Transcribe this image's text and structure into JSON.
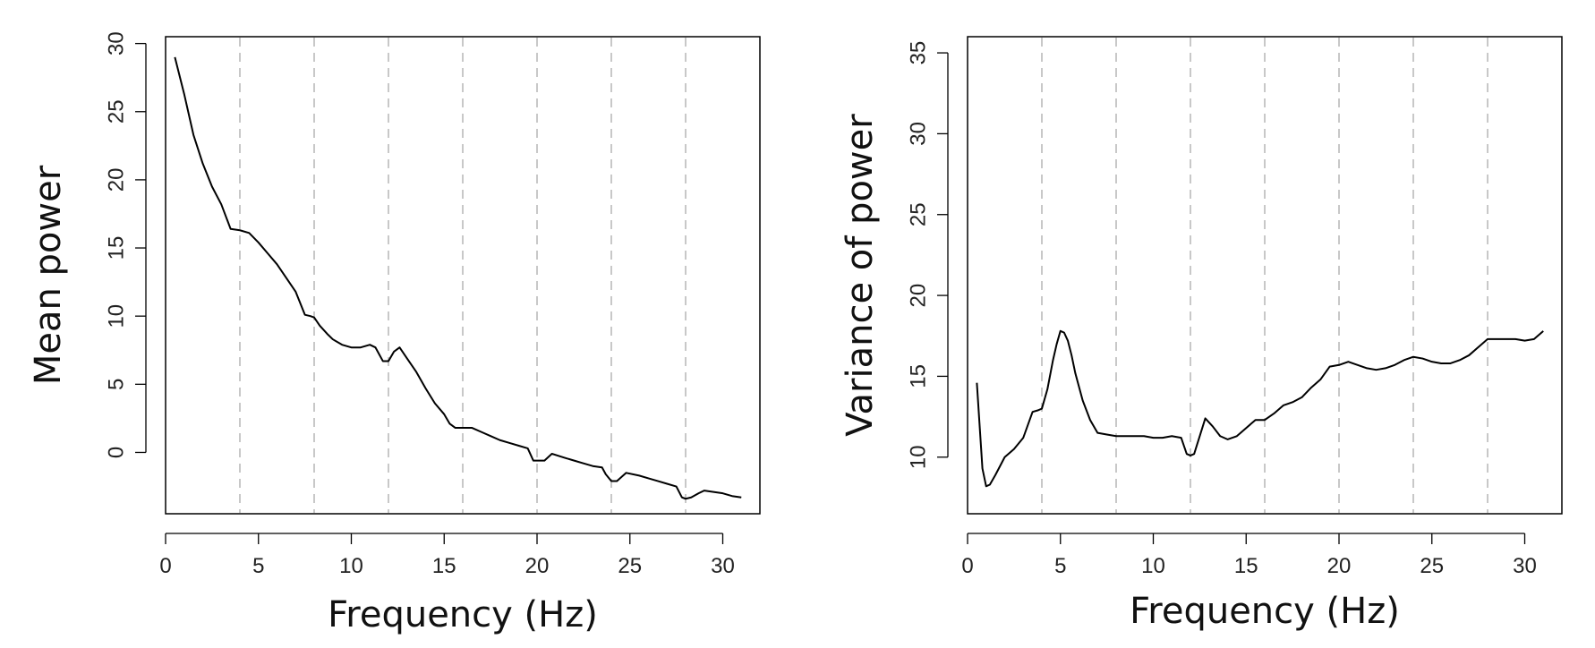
{
  "chart_data": [
    {
      "type": "line",
      "xlabel": "Frequency (Hz)",
      "ylabel": "Mean power",
      "xlim": [
        0,
        32
      ],
      "ylim": [
        -4.5,
        30.5
      ],
      "x_ticks": [
        0,
        5,
        10,
        15,
        20,
        25,
        30
      ],
      "y_ticks": [
        0,
        5,
        10,
        15,
        20,
        25,
        30
      ],
      "vlines": [
        4,
        8,
        12,
        16,
        20,
        24,
        28
      ],
      "grid": false,
      "series": [
        {
          "x": [
            0.5,
            1.0,
            1.5,
            2.0,
            2.5,
            3.0,
            3.5,
            4.0,
            4.5,
            5.0,
            5.5,
            6.0,
            6.5,
            7.0,
            7.5,
            7.8,
            8.0,
            8.3,
            8.7,
            9.0,
            9.5,
            10.0,
            10.5,
            11.0,
            11.3,
            11.7,
            12.0,
            12.3,
            12.6,
            13.0,
            13.5,
            14.0,
            14.5,
            15.0,
            15.3,
            15.6,
            16.0,
            16.5,
            17.0,
            17.5,
            18.0,
            18.5,
            19.0,
            19.5,
            19.8,
            20.0,
            20.4,
            20.8,
            21.5,
            22.0,
            22.5,
            23.0,
            23.5,
            23.7,
            24.0,
            24.3,
            24.8,
            25.5,
            26.0,
            26.5,
            27.0,
            27.5,
            27.8,
            28.0,
            28.3,
            28.7,
            29.0,
            29.5,
            30.0,
            30.5,
            31.0
          ],
          "values": [
            29.0,
            26.3,
            23.3,
            21.2,
            19.5,
            18.2,
            16.4,
            16.3,
            16.1,
            15.4,
            14.6,
            13.8,
            12.8,
            11.8,
            10.1,
            10.0,
            9.9,
            9.3,
            8.7,
            8.3,
            7.9,
            7.7,
            7.7,
            7.9,
            7.7,
            6.7,
            6.7,
            7.4,
            7.7,
            6.9,
            5.9,
            4.7,
            3.6,
            2.8,
            2.1,
            1.8,
            1.8,
            1.8,
            1.5,
            1.2,
            0.9,
            0.7,
            0.5,
            0.3,
            -0.6,
            -0.6,
            -0.6,
            -0.1,
            -0.4,
            -0.6,
            -0.8,
            -1.0,
            -1.1,
            -1.6,
            -2.1,
            -2.1,
            -1.5,
            -1.7,
            -1.9,
            -2.1,
            -2.3,
            -2.5,
            -3.3,
            -3.4,
            -3.3,
            -3.0,
            -2.8,
            -2.9,
            -3.0,
            -3.2,
            -3.3
          ]
        }
      ]
    },
    {
      "type": "line",
      "xlabel": "Frequency (Hz)",
      "ylabel": "Variance of power",
      "xlim": [
        0,
        32
      ],
      "ylim": [
        6.5,
        36
      ],
      "x_ticks": [
        0,
        5,
        10,
        15,
        20,
        25,
        30
      ],
      "y_ticks": [
        10,
        15,
        20,
        25,
        30,
        35
      ],
      "vlines": [
        4,
        8,
        12,
        16,
        20,
        24,
        28
      ],
      "grid": false,
      "series": [
        {
          "x": [
            0.5,
            0.8,
            1.0,
            1.2,
            1.5,
            2.0,
            2.5,
            3.0,
            3.5,
            3.8,
            4.0,
            4.3,
            4.6,
            4.8,
            5.0,
            5.2,
            5.4,
            5.6,
            5.8,
            6.2,
            6.6,
            7.0,
            7.5,
            8.0,
            8.5,
            9.0,
            9.5,
            10.0,
            10.5,
            11.0,
            11.5,
            11.8,
            12.0,
            12.2,
            12.5,
            12.8,
            13.2,
            13.6,
            14.0,
            14.5,
            15.0,
            15.5,
            16.0,
            16.5,
            17.0,
            17.5,
            18.0,
            18.5,
            19.0,
            19.5,
            20.0,
            20.5,
            21.0,
            21.5,
            22.0,
            22.5,
            23.0,
            23.5,
            24.0,
            24.5,
            25.0,
            25.5,
            26.0,
            26.5,
            27.0,
            27.5,
            28.0,
            28.5,
            29.0,
            29.5,
            30.0,
            30.5,
            31.0
          ],
          "values": [
            14.6,
            9.3,
            8.2,
            8.3,
            8.9,
            10.0,
            10.5,
            11.2,
            12.8,
            12.9,
            13.0,
            14.2,
            16.0,
            17.0,
            17.8,
            17.7,
            17.2,
            16.3,
            15.2,
            13.5,
            12.3,
            11.5,
            11.4,
            11.3,
            11.3,
            11.3,
            11.3,
            11.2,
            11.2,
            11.3,
            11.2,
            10.2,
            10.1,
            10.2,
            11.3,
            12.4,
            11.9,
            11.3,
            11.1,
            11.3,
            11.8,
            12.3,
            12.3,
            12.7,
            13.2,
            13.4,
            13.7,
            14.3,
            14.8,
            15.6,
            15.7,
            15.9,
            15.7,
            15.5,
            15.4,
            15.5,
            15.7,
            16.0,
            16.2,
            16.1,
            15.9,
            15.8,
            15.8,
            16.0,
            16.3,
            16.8,
            17.3,
            17.3,
            17.3,
            17.3,
            17.2,
            17.3,
            17.8
          ]
        }
      ]
    }
  ]
}
